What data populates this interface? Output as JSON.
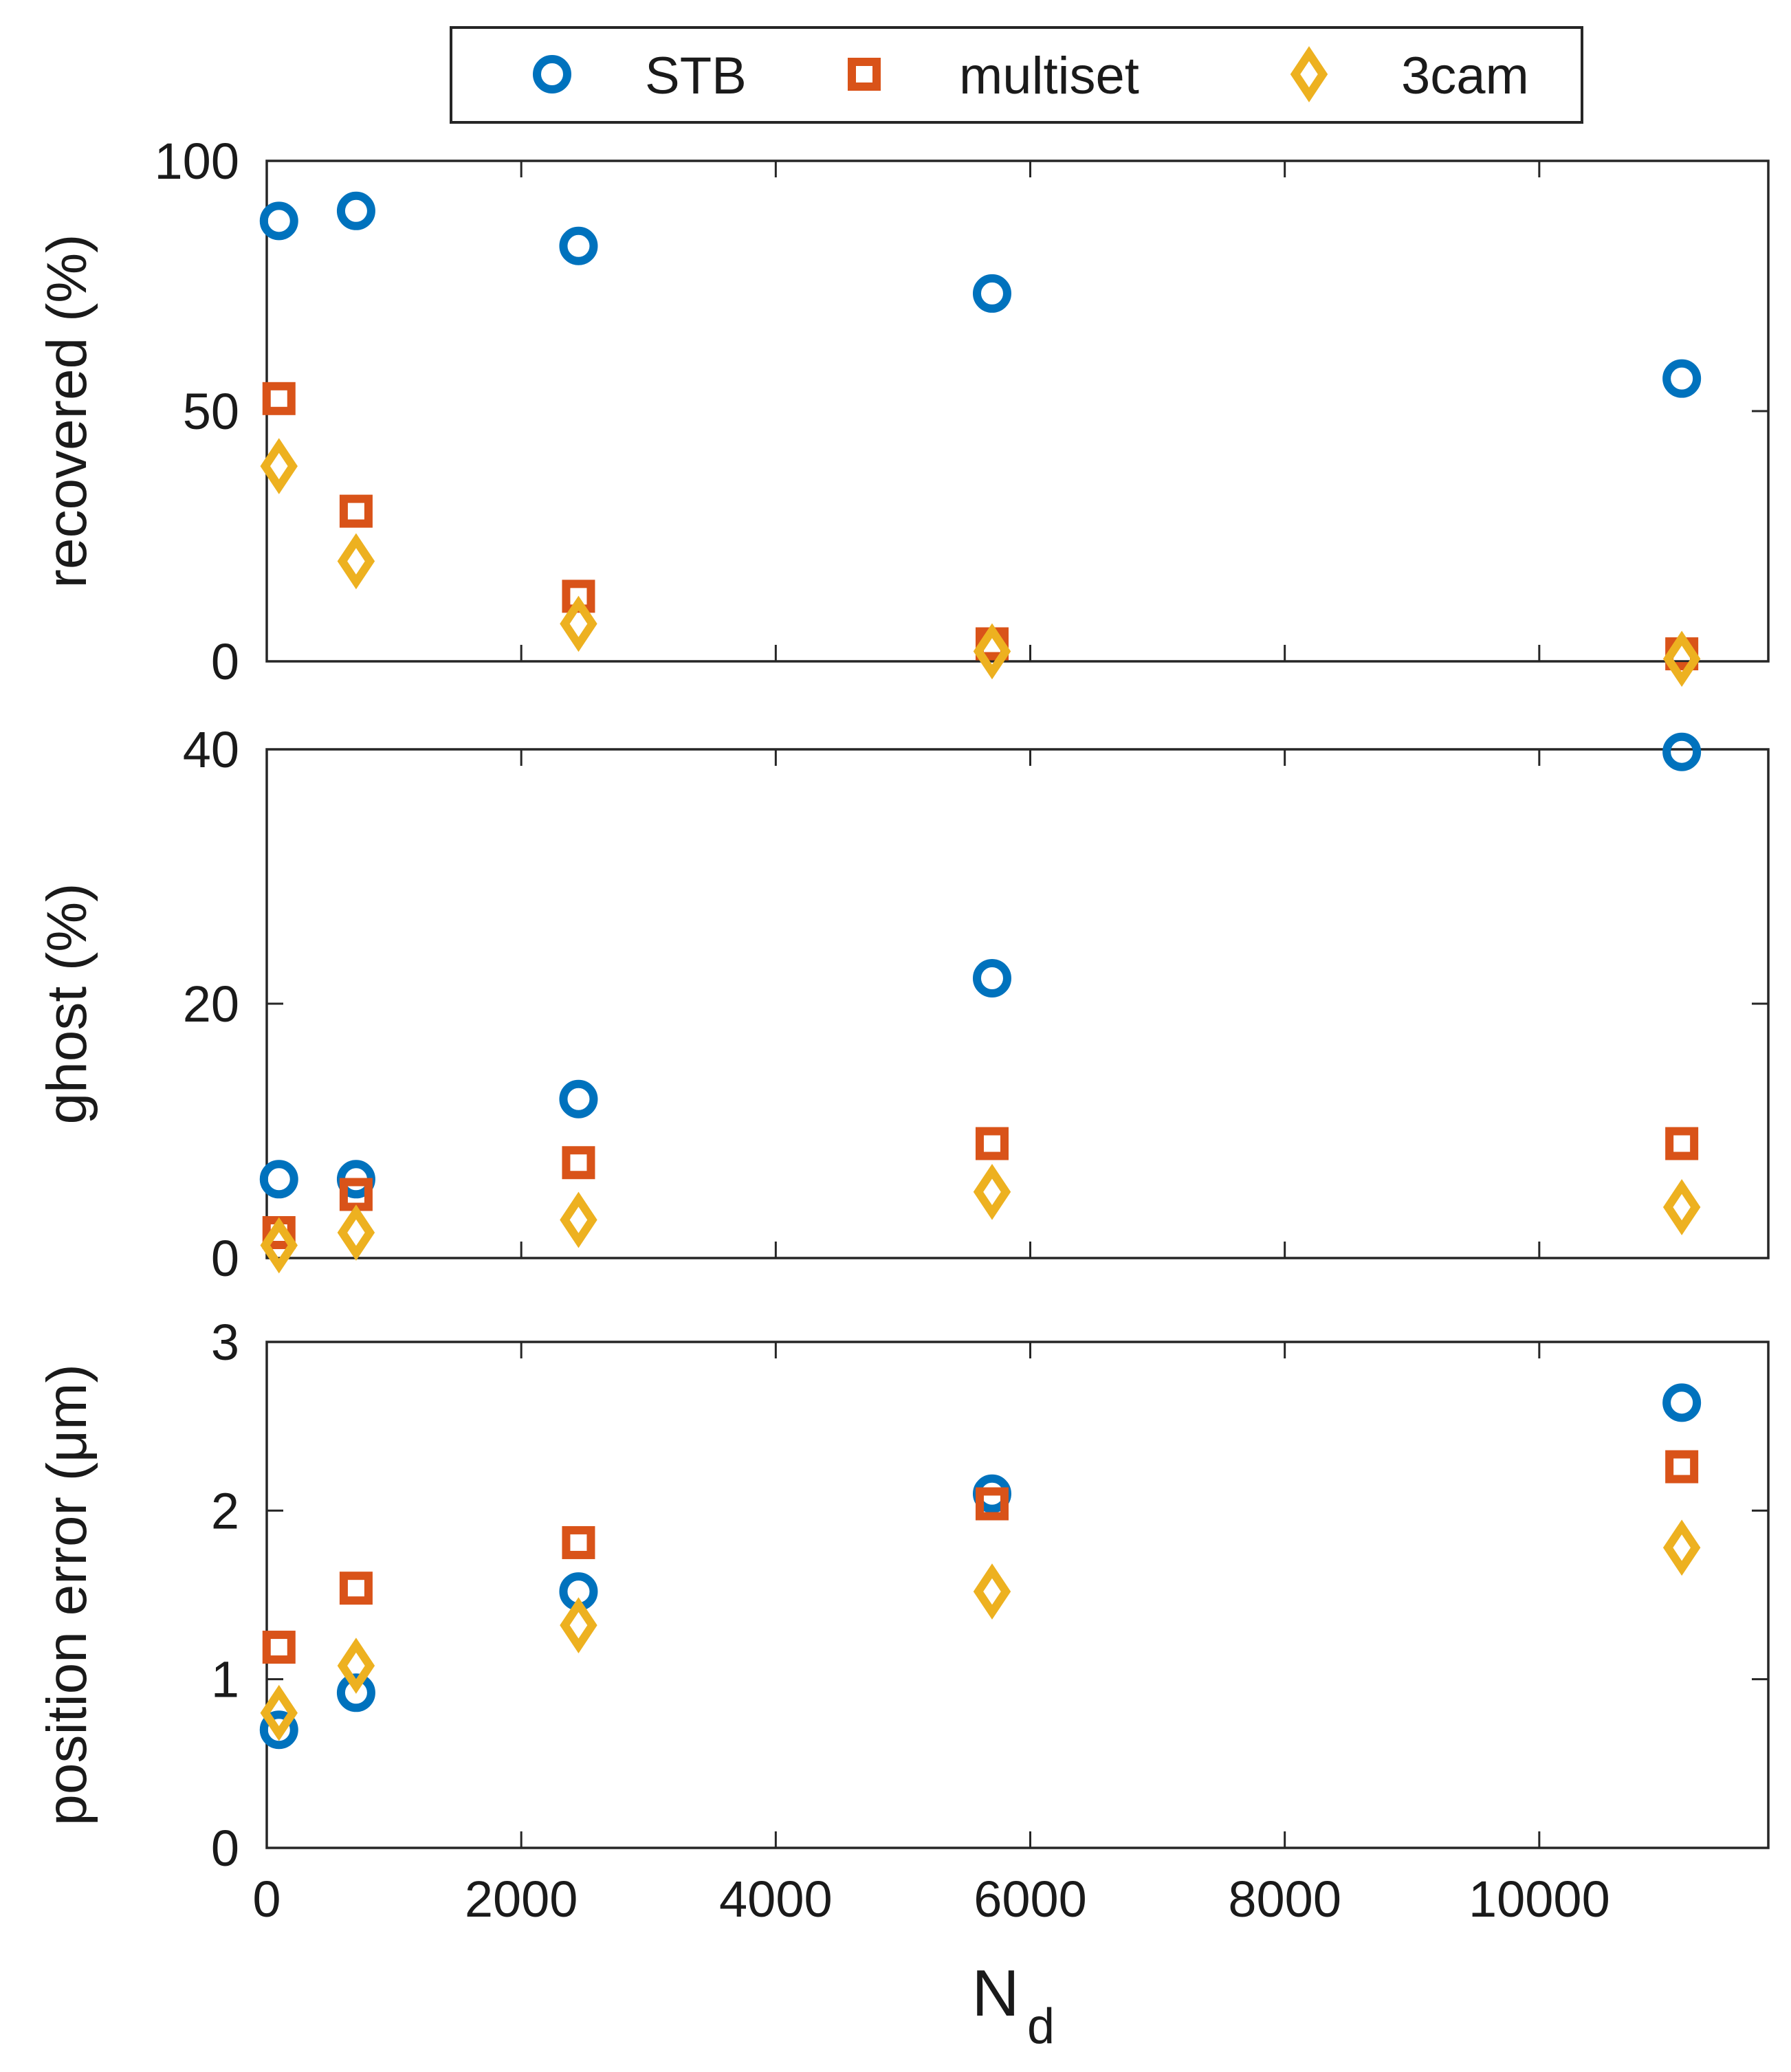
{
  "colors": {
    "STB": "#0072BD",
    "multiset": "#D95319",
    "3cam": "#EDB120",
    "axis": "#262626"
  },
  "legend": {
    "entries": [
      {
        "name": "STB",
        "marker": "circle"
      },
      {
        "name": "multiset",
        "marker": "square"
      },
      {
        "name": "3cam",
        "marker": "diamond"
      }
    ]
  },
  "xaxis": {
    "label_main": "N",
    "label_sub": "d",
    "ticks": [
      0,
      2000,
      4000,
      6000,
      8000,
      10000
    ],
    "tick_labels": [
      "0",
      "2000",
      "4000",
      "6000",
      "8000",
      "10000"
    ]
  },
  "chart_data": [
    {
      "type": "scatter",
      "ylabel": "recovered (%)",
      "ylim": [
        0,
        100
      ],
      "xlim": [
        0,
        11800
      ],
      "yticks": [
        0,
        50,
        100
      ],
      "ytick_labels": [
        "0",
        "50",
        "100"
      ],
      "x": [
        96,
        702,
        2450,
        5700,
        11120
      ],
      "series": [
        {
          "name": "STB",
          "values": [
            88,
            90,
            83,
            73.5,
            56.5
          ]
        },
        {
          "name": "multiset",
          "values": [
            52.5,
            30,
            13,
            3.5,
            1.5
          ]
        },
        {
          "name": "3cam",
          "values": [
            39,
            20,
            7.5,
            2,
            0.5
          ]
        }
      ]
    },
    {
      "type": "scatter",
      "ylabel": "ghost (%)",
      "ylim": [
        0,
        40
      ],
      "xlim": [
        0,
        11800
      ],
      "yticks": [
        0,
        20,
        40
      ],
      "ytick_labels": [
        "0",
        "20",
        "40"
      ],
      "x": [
        96,
        702,
        2450,
        5700,
        11120
      ],
      "series": [
        {
          "name": "STB",
          "values": [
            6.2,
            6.2,
            12.5,
            22,
            39.8
          ]
        },
        {
          "name": "multiset",
          "values": [
            2,
            5,
            7.5,
            9,
            9
          ]
        },
        {
          "name": "3cam",
          "values": [
            1,
            2,
            3,
            5.2,
            4
          ]
        }
      ]
    },
    {
      "type": "scatter",
      "ylabel": "position error (μm)",
      "ylim": [
        0,
        3
      ],
      "xlim": [
        0,
        11800
      ],
      "yticks": [
        0,
        1,
        2,
        3
      ],
      "ytick_labels": [
        "0",
        "1",
        "2",
        "3"
      ],
      "x": [
        96,
        702,
        2450,
        5700,
        11120
      ],
      "series": [
        {
          "name": "STB",
          "values": [
            0.7,
            0.92,
            1.52,
            2.1,
            2.64
          ]
        },
        {
          "name": "multiset",
          "values": [
            1.19,
            1.54,
            1.81,
            2.04,
            2.26
          ]
        },
        {
          "name": "3cam",
          "values": [
            0.8,
            1.08,
            1.32,
            1.52,
            1.78
          ]
        }
      ]
    }
  ]
}
